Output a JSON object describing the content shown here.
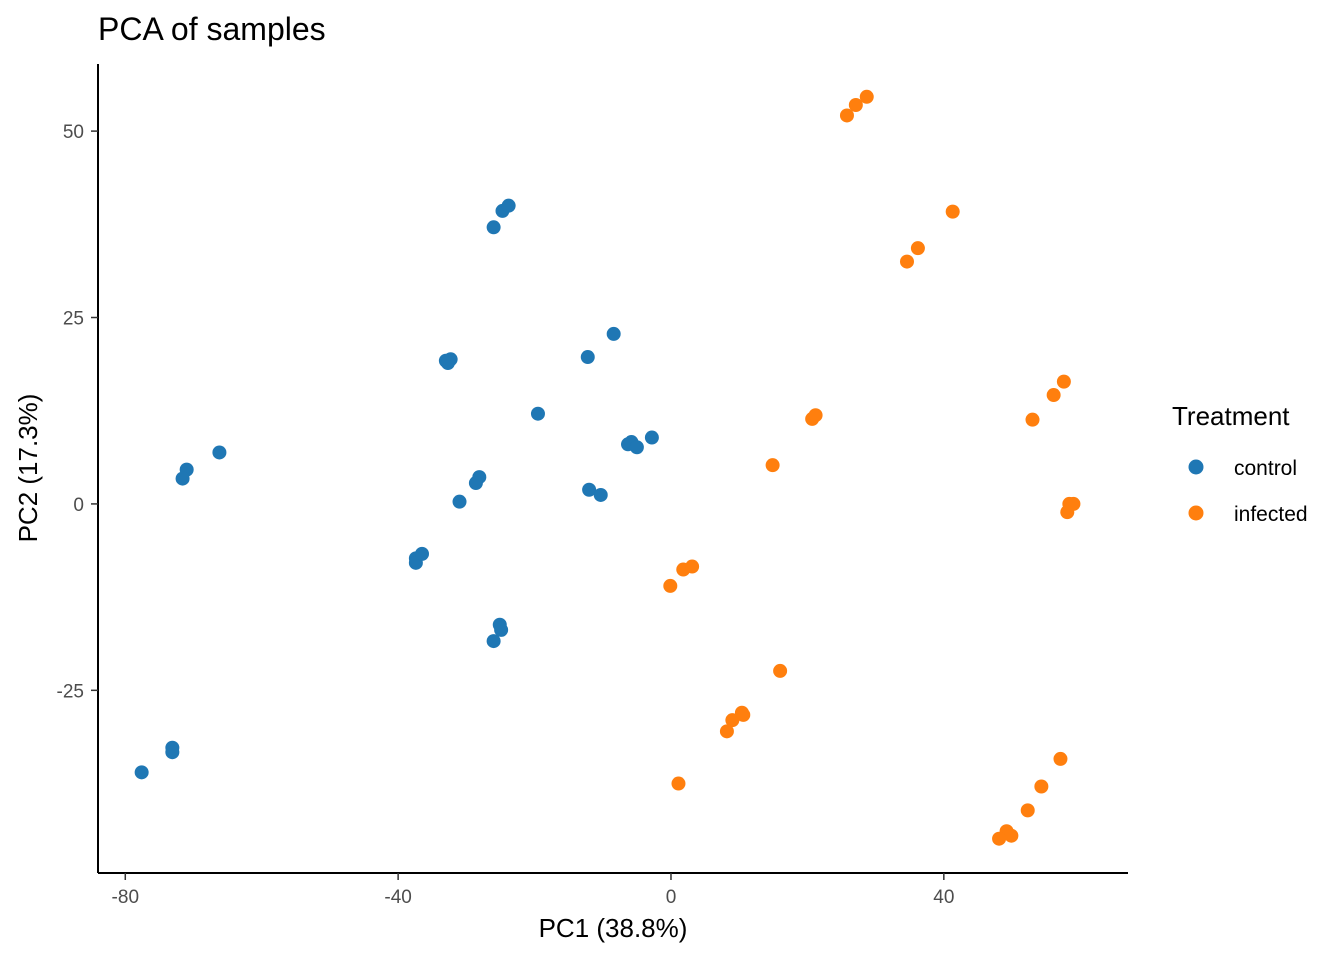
{
  "chart_data": {
    "type": "scatter",
    "title": "PCA of samples",
    "xlabel": "PC1 (38.8%)",
    "ylabel": "PC2 (17.3%)",
    "xlim": [
      -84,
      67
    ],
    "ylim": [
      -49.5,
      59
    ],
    "xticks": [
      {
        "value": -80,
        "label": "-80"
      },
      {
        "value": -40,
        "label": "-40"
      },
      {
        "value": 0,
        "label": "0"
      },
      {
        "value": 40,
        "label": "40"
      }
    ],
    "yticks": [
      {
        "value": 50,
        "label": "50"
      },
      {
        "value": 25,
        "label": "25"
      },
      {
        "value": 0,
        "label": "0"
      },
      {
        "value": -25,
        "label": "-25"
      }
    ],
    "grid": false,
    "legend": {
      "title": "Treatment",
      "placement": "right"
    },
    "series": [
      {
        "name": "control",
        "color": "#1f77b4",
        "points": [
          [
            -26.0,
            37.1
          ],
          [
            -24.7,
            39.3
          ],
          [
            -23.8,
            40.0
          ],
          [
            -12.2,
            19.7
          ],
          [
            -8.4,
            22.8
          ],
          [
            -33.0,
            19.2
          ],
          [
            -32.3,
            19.4
          ],
          [
            -32.7,
            18.9
          ],
          [
            -19.5,
            12.1
          ],
          [
            -71.0,
            4.6
          ],
          [
            -71.6,
            3.4
          ],
          [
            -66.2,
            6.9
          ],
          [
            -28.1,
            3.6
          ],
          [
            -28.6,
            2.8
          ],
          [
            -31.0,
            0.3
          ],
          [
            -12.0,
            1.9
          ],
          [
            -10.3,
            1.2
          ],
          [
            -6.3,
            8.0
          ],
          [
            -5.8,
            8.3
          ],
          [
            -5.0,
            7.6
          ],
          [
            -2.8,
            8.9
          ],
          [
            -37.4,
            -7.3
          ],
          [
            -37.4,
            -7.9
          ],
          [
            -36.5,
            -6.7
          ],
          [
            -25.1,
            -16.2
          ],
          [
            -24.9,
            -16.9
          ],
          [
            -26.0,
            -18.4
          ],
          [
            -73.1,
            -32.7
          ],
          [
            -73.1,
            -33.3
          ],
          [
            -77.6,
            -36.0
          ]
        ]
      },
      {
        "name": "infected",
        "color": "#ff7f0e",
        "points": [
          [
            25.8,
            52.1
          ],
          [
            27.1,
            53.5
          ],
          [
            28.7,
            54.6
          ],
          [
            41.3,
            39.2
          ],
          [
            36.2,
            34.3
          ],
          [
            34.6,
            32.5
          ],
          [
            57.6,
            16.4
          ],
          [
            56.1,
            14.6
          ],
          [
            53.0,
            11.3
          ],
          [
            20.7,
            11.4
          ],
          [
            21.2,
            11.9
          ],
          [
            14.9,
            5.2
          ],
          [
            58.4,
            0.0
          ],
          [
            59.0,
            0.0
          ],
          [
            58.1,
            -1.1
          ],
          [
            -0.1,
            -11.0
          ],
          [
            1.8,
            -8.8
          ],
          [
            3.1,
            -8.4
          ],
          [
            16.0,
            -22.4
          ],
          [
            10.4,
            -28.0
          ],
          [
            9.0,
            -29.0
          ],
          [
            8.2,
            -30.5
          ],
          [
            10.6,
            -28.3
          ],
          [
            1.1,
            -37.5
          ],
          [
            57.1,
            -34.2
          ],
          [
            54.3,
            -37.9
          ],
          [
            52.3,
            -41.1
          ],
          [
            49.2,
            -43.9
          ],
          [
            49.9,
            -44.5
          ],
          [
            48.1,
            -44.9
          ]
        ]
      }
    ]
  }
}
